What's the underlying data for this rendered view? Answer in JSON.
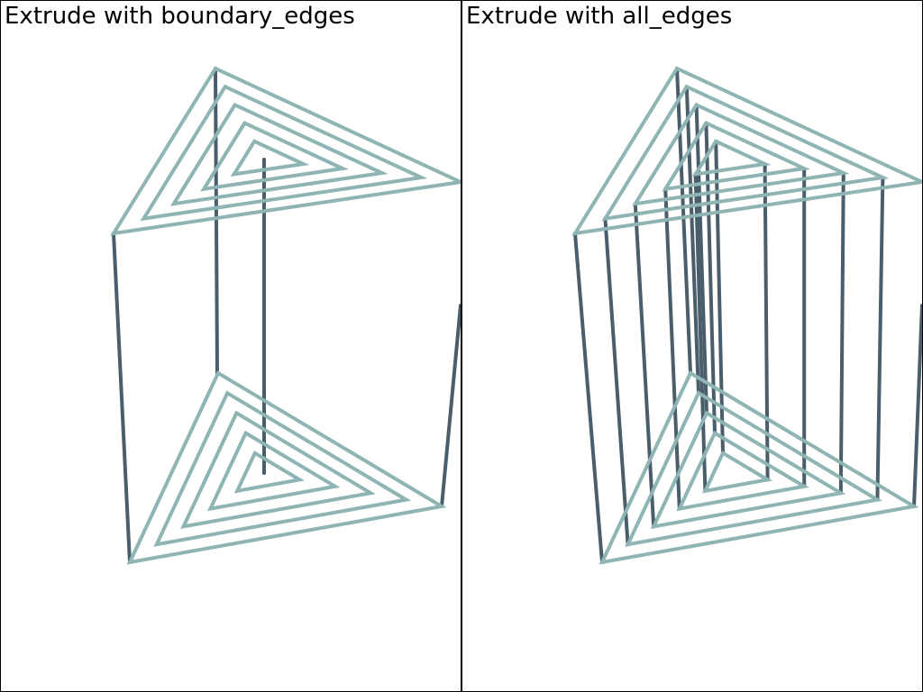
{
  "viewports": [
    {
      "title": "Extrude with boundary_edges"
    },
    {
      "title": "Extrude with all_edges"
    }
  ],
  "colors": {
    "base_mesh": "#8fb4b4",
    "extruded_edges": "#4a5d6a",
    "background": "#ffffff",
    "divider": "#000000"
  }
}
